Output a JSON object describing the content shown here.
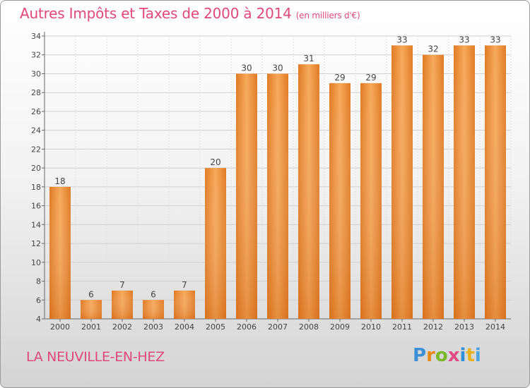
{
  "title": "Autres Impôts et Taxes de 2000 à 2014",
  "subtitle": "(en milliers d'€)",
  "commune": "LA NEUVILLE-EN-HEZ",
  "logo": {
    "letters": [
      "P",
      "r",
      "o",
      "x",
      "i",
      "t",
      "i"
    ],
    "colors": [
      "#3e8fd6",
      "#e88a1a",
      "#7ab829",
      "#e04a85",
      "#2f8fd8",
      "#e9b21a",
      "#4ea4e0"
    ]
  },
  "colors": {
    "bar": "#f0892e",
    "bar_light": "#f7a95a",
    "title": "#e0487a"
  },
  "chart_data": {
    "type": "bar",
    "categories": [
      "2000",
      "2001",
      "2002",
      "2003",
      "2004",
      "2005",
      "2006",
      "2007",
      "2008",
      "2009",
      "2010",
      "2011",
      "2012",
      "2013",
      "2014"
    ],
    "values": [
      18,
      6,
      7,
      6,
      7,
      20,
      30,
      30,
      31,
      29,
      29,
      33,
      32,
      33,
      33
    ],
    "ylim": [
      4,
      34
    ],
    "yticks": [
      4,
      6,
      8,
      10,
      12,
      14,
      16,
      18,
      20,
      22,
      24,
      26,
      28,
      30,
      32,
      34
    ],
    "grid": true,
    "xlabel": "",
    "ylabel": ""
  }
}
